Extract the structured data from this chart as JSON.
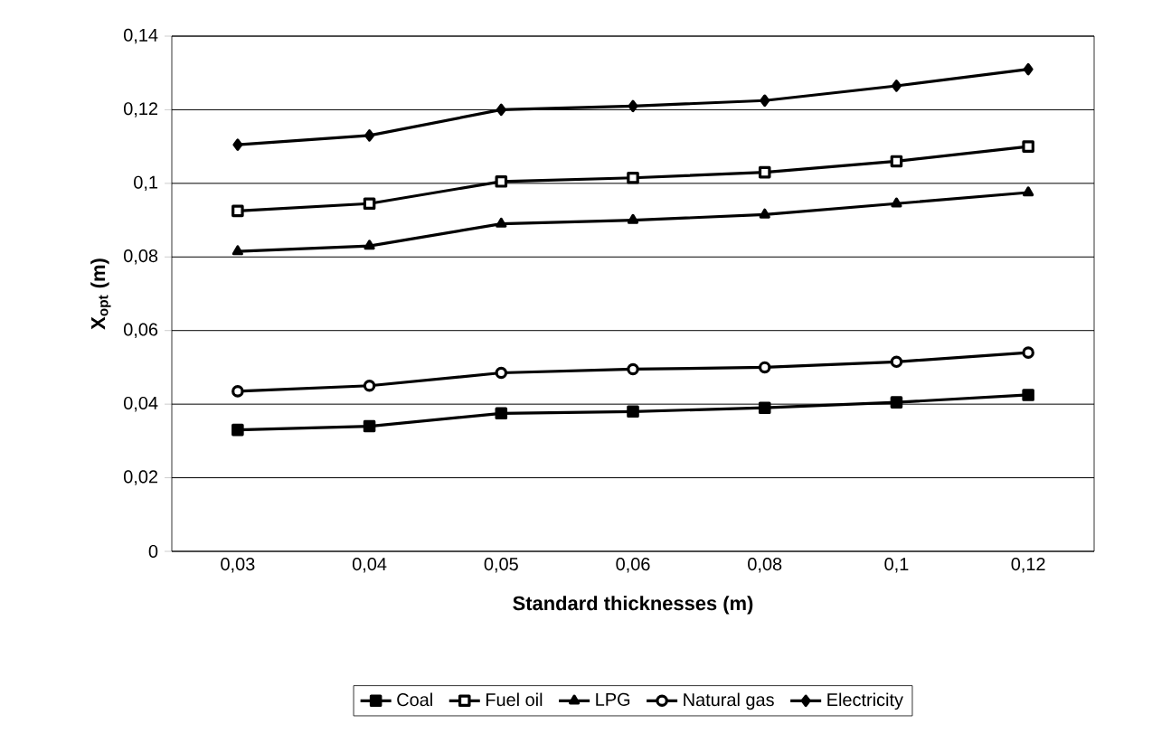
{
  "chart_data": {
    "type": "line",
    "xlabel": "Standard thicknesses (m)",
    "ylabel": "X$_{opt}$ (m)",
    "categories": [
      "0,03",
      "0,04",
      "0,05",
      "0,06",
      "0,08",
      "0,1",
      "0,12"
    ],
    "ylim": [
      0,
      0.14
    ],
    "yticks": [
      0,
      {
        "value": 0.02,
        "label": "0,02"
      },
      {
        "value": 0.04,
        "label": "0,04"
      },
      {
        "value": 0.06,
        "label": "0,06"
      },
      {
        "value": 0.08,
        "label": "0,08"
      },
      {
        "value": 0.1,
        "label": "0,1"
      },
      {
        "value": 0.12,
        "label": "0,12"
      },
      {
        "value": 0.14,
        "label": "0,14"
      }
    ],
    "grid": "y",
    "legend": "bottom",
    "line_style": "solid",
    "series": [
      {
        "name": "Coal",
        "color": "#000000",
        "marker": "square",
        "values": [
          0.033,
          0.034,
          0.0375,
          0.038,
          0.039,
          0.0405,
          0.0425
        ]
      },
      {
        "name": "Fuel oil",
        "color": "#000000",
        "marker": "square",
        "values": [
          0.0925,
          0.0945,
          0.1005,
          0.1015,
          0.103,
          0.106,
          0.11
        ]
      },
      {
        "name": "LPG",
        "color": "#000000",
        "marker": "triangle",
        "values": [
          0.0815,
          0.083,
          0.089,
          0.09,
          0.0915,
          0.0945,
          0.0975
        ]
      },
      {
        "name": "Natural gas",
        "color": "#000000",
        "marker": "circle",
        "values": [
          0.0435,
          0.045,
          0.0485,
          0.0495,
          0.05,
          0.0515,
          0.054
        ]
      },
      {
        "name": "Electricity",
        "color": "#000000",
        "marker": "diamond",
        "values": [
          0.1105,
          0.113,
          0.12,
          0.121,
          0.1225,
          0.1265,
          0.131
        ]
      }
    ]
  }
}
